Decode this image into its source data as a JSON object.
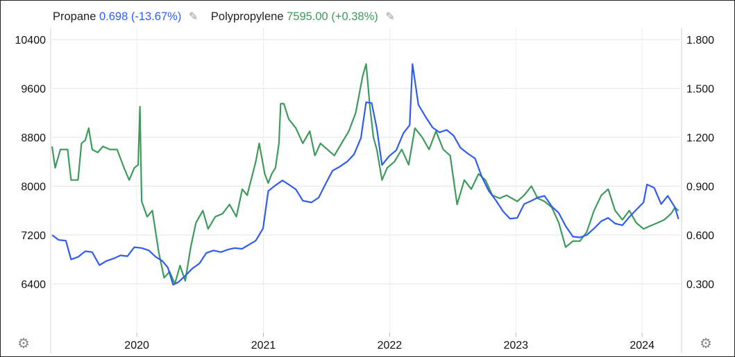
{
  "legend": [
    {
      "name": "Propane",
      "value": "0.698",
      "change": "(-13.67%)",
      "color": "#2f5cf0"
    },
    {
      "name": "Polypropylene",
      "value": "7595.00",
      "change": "(+0.38%)",
      "color": "#3d9a5a"
    }
  ],
  "icons": {
    "edit": "pencil-icon",
    "settings": "gear-icon"
  },
  "chart_data": {
    "type": "line",
    "x_range": [
      "2019-05",
      "2024-04"
    ],
    "x_ticks": [
      "2020",
      "2021",
      "2022",
      "2023",
      "2024"
    ],
    "left_axis": {
      "ticks": [
        "10400",
        "9600",
        "8800",
        "8000",
        "7200",
        "6400"
      ],
      "range": [
        5600,
        10400
      ],
      "series": "Polypropylene"
    },
    "right_axis": {
      "ticks": [
        "1.800",
        "1.500",
        "1.200",
        "0.900",
        "0.600",
        "0.300"
      ],
      "range": [
        0.0,
        1.8
      ],
      "series": "Propane"
    },
    "grid": true,
    "legend_position": "top-left",
    "series": [
      {
        "name": "Propane",
        "axis": "right",
        "color": "#2f5cf0",
        "points": [
          [
            "2019-05-01",
            0.6
          ],
          [
            "2019-05-20",
            0.57
          ],
          [
            "2019-06-10",
            0.565
          ],
          [
            "2019-06-25",
            0.45
          ],
          [
            "2019-07-15",
            0.465
          ],
          [
            "2019-08-05",
            0.5
          ],
          [
            "2019-08-25",
            0.495
          ],
          [
            "2019-09-15",
            0.415
          ],
          [
            "2019-10-05",
            0.44
          ],
          [
            "2019-10-25",
            0.455
          ],
          [
            "2019-11-15",
            0.475
          ],
          [
            "2019-12-05",
            0.47
          ],
          [
            "2019-12-25",
            0.525
          ],
          [
            "2020-01-15",
            0.52
          ],
          [
            "2020-02-05",
            0.505
          ],
          [
            "2020-02-25",
            0.465
          ],
          [
            "2020-03-15",
            0.44
          ],
          [
            "2020-03-31",
            0.4
          ],
          [
            "2020-04-15",
            0.295
          ],
          [
            "2020-04-30",
            0.31
          ],
          [
            "2020-05-20",
            0.35
          ],
          [
            "2020-06-10",
            0.395
          ],
          [
            "2020-06-30",
            0.425
          ],
          [
            "2020-07-20",
            0.49
          ],
          [
            "2020-08-10",
            0.505
          ],
          [
            "2020-08-31",
            0.495
          ],
          [
            "2020-09-20",
            0.51
          ],
          [
            "2020-10-10",
            0.52
          ],
          [
            "2020-10-31",
            0.515
          ],
          [
            "2020-11-20",
            0.54
          ],
          [
            "2020-12-10",
            0.565
          ],
          [
            "2020-12-31",
            0.64
          ],
          [
            "2021-01-15",
            0.87
          ],
          [
            "2021-02-05",
            0.905
          ],
          [
            "2021-02-25",
            0.935
          ],
          [
            "2021-03-15",
            0.91
          ],
          [
            "2021-04-05",
            0.88
          ],
          [
            "2021-04-25",
            0.81
          ],
          [
            "2021-05-20",
            0.8
          ],
          [
            "2021-06-10",
            0.83
          ],
          [
            "2021-06-30",
            0.915
          ],
          [
            "2021-07-20",
            0.995
          ],
          [
            "2021-08-10",
            1.02
          ],
          [
            "2021-08-31",
            1.05
          ],
          [
            "2021-09-20",
            1.095
          ],
          [
            "2021-10-10",
            1.195
          ],
          [
            "2021-10-25",
            1.415
          ],
          [
            "2021-11-10",
            1.41
          ],
          [
            "2021-11-25",
            1.255
          ],
          [
            "2021-12-10",
            1.03
          ],
          [
            "2021-12-31",
            1.085
          ],
          [
            "2022-01-20",
            1.12
          ],
          [
            "2022-02-10",
            1.225
          ],
          [
            "2022-02-28",
            1.275
          ],
          [
            "2022-03-08",
            1.65
          ],
          [
            "2022-03-25",
            1.4
          ],
          [
            "2022-04-15",
            1.325
          ],
          [
            "2022-05-05",
            1.26
          ],
          [
            "2022-05-25",
            1.23
          ],
          [
            "2022-06-15",
            1.245
          ],
          [
            "2022-07-05",
            1.21
          ],
          [
            "2022-07-25",
            1.135
          ],
          [
            "2022-08-15",
            1.1
          ],
          [
            "2022-09-05",
            1.07
          ],
          [
            "2022-09-25",
            0.955
          ],
          [
            "2022-10-15",
            0.87
          ],
          [
            "2022-11-05",
            0.81
          ],
          [
            "2022-11-25",
            0.745
          ],
          [
            "2022-12-15",
            0.7
          ],
          [
            "2023-01-05",
            0.705
          ],
          [
            "2023-01-25",
            0.79
          ],
          [
            "2023-02-15",
            0.81
          ],
          [
            "2023-03-05",
            0.83
          ],
          [
            "2023-03-25",
            0.84
          ],
          [
            "2023-04-15",
            0.775
          ],
          [
            "2023-05-05",
            0.735
          ],
          [
            "2023-05-25",
            0.655
          ],
          [
            "2023-06-15",
            0.59
          ],
          [
            "2023-07-05",
            0.585
          ],
          [
            "2023-07-25",
            0.6
          ],
          [
            "2023-08-15",
            0.64
          ],
          [
            "2023-09-05",
            0.685
          ],
          [
            "2023-09-25",
            0.705
          ],
          [
            "2023-10-15",
            0.67
          ],
          [
            "2023-11-05",
            0.66
          ],
          [
            "2023-11-25",
            0.71
          ],
          [
            "2023-12-15",
            0.755
          ],
          [
            "2024-01-05",
            0.8
          ],
          [
            "2024-01-15",
            0.91
          ],
          [
            "2024-02-05",
            0.89
          ],
          [
            "2024-02-25",
            0.79
          ],
          [
            "2024-03-15",
            0.84
          ],
          [
            "2024-04-05",
            0.77
          ],
          [
            "2024-04-15",
            0.698
          ]
        ]
      },
      {
        "name": "Polypropylene",
        "axis": "left",
        "color": "#3d9a5a",
        "points": [
          [
            "2019-05-01",
            8650
          ],
          [
            "2019-05-10",
            8300
          ],
          [
            "2019-05-25",
            8600
          ],
          [
            "2019-06-15",
            8600
          ],
          [
            "2019-06-25",
            8100
          ],
          [
            "2019-07-15",
            8100
          ],
          [
            "2019-07-25",
            8700
          ],
          [
            "2019-08-05",
            8750
          ],
          [
            "2019-08-15",
            8950
          ],
          [
            "2019-08-25",
            8600
          ],
          [
            "2019-09-10",
            8550
          ],
          [
            "2019-09-25",
            8650
          ],
          [
            "2019-10-15",
            8600
          ],
          [
            "2019-11-05",
            8600
          ],
          [
            "2019-11-25",
            8300
          ],
          [
            "2019-12-10",
            8100
          ],
          [
            "2019-12-25",
            8300
          ],
          [
            "2020-01-05",
            8350
          ],
          [
            "2020-01-10",
            9300
          ],
          [
            "2020-01-15",
            7750
          ],
          [
            "2020-01-31",
            7500
          ],
          [
            "2020-02-15",
            7600
          ],
          [
            "2020-03-05",
            6900
          ],
          [
            "2020-03-20",
            6500
          ],
          [
            "2020-04-05",
            6600
          ],
          [
            "2020-04-20",
            6400
          ],
          [
            "2020-05-05",
            6700
          ],
          [
            "2020-05-20",
            6450
          ],
          [
            "2020-06-05",
            7000
          ],
          [
            "2020-06-20",
            7400
          ],
          [
            "2020-07-10",
            7600
          ],
          [
            "2020-07-25",
            7300
          ],
          [
            "2020-08-15",
            7500
          ],
          [
            "2020-09-05",
            7550
          ],
          [
            "2020-09-25",
            7700
          ],
          [
            "2020-10-15",
            7500
          ],
          [
            "2020-11-01",
            7950
          ],
          [
            "2020-11-15",
            7850
          ],
          [
            "2020-12-01",
            8200
          ],
          [
            "2020-12-10",
            8400
          ],
          [
            "2020-12-20",
            8700
          ],
          [
            "2021-01-05",
            8200
          ],
          [
            "2021-01-15",
            8050
          ],
          [
            "2021-01-25",
            8200
          ],
          [
            "2021-02-05",
            8300
          ],
          [
            "2021-02-15",
            8700
          ],
          [
            "2021-02-20",
            9350
          ],
          [
            "2021-03-01",
            9350
          ],
          [
            "2021-03-15",
            9100
          ],
          [
            "2021-04-05",
            8950
          ],
          [
            "2021-04-25",
            8700
          ],
          [
            "2021-05-15",
            8900
          ],
          [
            "2021-05-30",
            8500
          ],
          [
            "2021-06-15",
            8700
          ],
          [
            "2021-07-05",
            8600
          ],
          [
            "2021-07-25",
            8500
          ],
          [
            "2021-08-15",
            8700
          ],
          [
            "2021-09-05",
            8900
          ],
          [
            "2021-09-25",
            9200
          ],
          [
            "2021-10-15",
            9800
          ],
          [
            "2021-10-25",
            10000
          ],
          [
            "2021-11-05",
            9300
          ],
          [
            "2021-11-15",
            8800
          ],
          [
            "2021-11-25",
            8600
          ],
          [
            "2021-12-10",
            8100
          ],
          [
            "2021-12-25",
            8300
          ],
          [
            "2022-01-15",
            8400
          ],
          [
            "2022-02-05",
            8600
          ],
          [
            "2022-02-25",
            8350
          ],
          [
            "2022-03-15",
            8950
          ],
          [
            "2022-04-05",
            8800
          ],
          [
            "2022-04-25",
            8600
          ],
          [
            "2022-05-15",
            8900
          ],
          [
            "2022-06-05",
            8600
          ],
          [
            "2022-06-25",
            8500
          ],
          [
            "2022-07-15",
            7700
          ],
          [
            "2022-08-05",
            8100
          ],
          [
            "2022-08-25",
            7950
          ],
          [
            "2022-09-15",
            8200
          ],
          [
            "2022-10-05",
            8100
          ],
          [
            "2022-10-25",
            7850
          ],
          [
            "2022-11-15",
            7800
          ],
          [
            "2022-12-05",
            7850
          ],
          [
            "2023-01-05",
            7750
          ],
          [
            "2023-01-25",
            7850
          ],
          [
            "2023-02-15",
            8000
          ],
          [
            "2023-03-05",
            7800
          ],
          [
            "2023-03-25",
            7750
          ],
          [
            "2023-04-15",
            7650
          ],
          [
            "2023-05-05",
            7400
          ],
          [
            "2023-05-25",
            7000
          ],
          [
            "2023-06-15",
            7100
          ],
          [
            "2023-07-05",
            7100
          ],
          [
            "2023-07-25",
            7250
          ],
          [
            "2023-08-15",
            7600
          ],
          [
            "2023-09-05",
            7850
          ],
          [
            "2023-09-25",
            7950
          ],
          [
            "2023-10-15",
            7600
          ],
          [
            "2023-11-05",
            7450
          ],
          [
            "2023-11-25",
            7600
          ],
          [
            "2023-12-15",
            7400
          ],
          [
            "2024-01-05",
            7300
          ],
          [
            "2024-01-25",
            7350
          ],
          [
            "2024-02-15",
            7400
          ],
          [
            "2024-03-05",
            7450
          ],
          [
            "2024-03-25",
            7550
          ],
          [
            "2024-04-05",
            7650
          ],
          [
            "2024-04-15",
            7595
          ]
        ]
      }
    ]
  }
}
